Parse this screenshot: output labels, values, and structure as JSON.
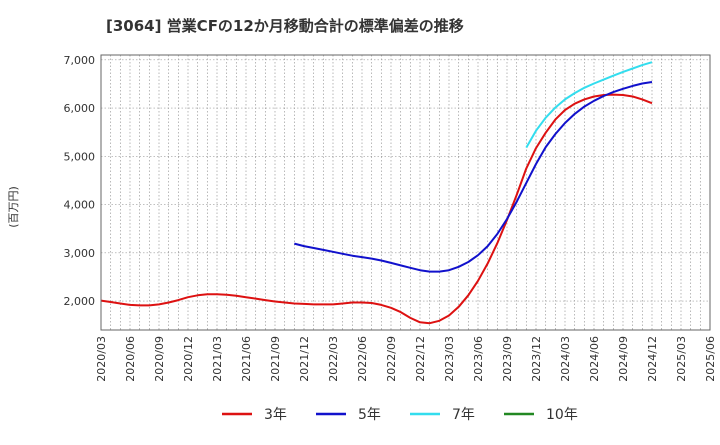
{
  "chart_data": {
    "type": "line",
    "title": "[3064]  営業CFの12か月移動合計の標準偏差の推移",
    "ylabel": "(百万円)",
    "xlabel": "",
    "ylim": [
      1400,
      7100
    ],
    "yticks": [
      2000,
      3000,
      4000,
      5000,
      6000,
      7000
    ],
    "ytick_labels": [
      "2,000",
      "3,000",
      "4,000",
      "5,000",
      "6,000",
      "7,000"
    ],
    "xtick_labels": [
      "2020/03",
      "2020/06",
      "2020/09",
      "2020/12",
      "2021/03",
      "2021/06",
      "2021/09",
      "2021/12",
      "2022/03",
      "2022/06",
      "2022/09",
      "2022/12",
      "2023/03",
      "2023/06",
      "2023/09",
      "2023/12",
      "2024/03",
      "2024/06",
      "2024/09",
      "2024/12",
      "2025/03",
      "2025/06"
    ],
    "grid": true,
    "legend_position": "bottom",
    "series": [
      {
        "name": "3年",
        "color": "#dd1111",
        "x": [
          "2020/03",
          "2020/04",
          "2020/05",
          "2020/06",
          "2020/07",
          "2020/08",
          "2020/09",
          "2020/10",
          "2020/11",
          "2020/12",
          "2021/01",
          "2021/02",
          "2021/03",
          "2021/04",
          "2021/05",
          "2021/06",
          "2021/07",
          "2021/08",
          "2021/09",
          "2021/10",
          "2021/11",
          "2021/12",
          "2022/01",
          "2022/02",
          "2022/03",
          "2022/04",
          "2022/05",
          "2022/06",
          "2022/07",
          "2022/08",
          "2022/09",
          "2022/10",
          "2022/11",
          "2022/12",
          "2023/01",
          "2023/02",
          "2023/03",
          "2023/04",
          "2023/05",
          "2023/06",
          "2023/07",
          "2023/08",
          "2023/09",
          "2023/10",
          "2023/11",
          "2023/12",
          "2024/01",
          "2024/02",
          "2024/03",
          "2024/04",
          "2024/05",
          "2024/06",
          "2024/07",
          "2024/08",
          "2024/09",
          "2024/10",
          "2024/11",
          "2024/12"
        ],
        "values": [
          2010,
          1980,
          1950,
          1920,
          1910,
          1910,
          1930,
          1970,
          2020,
          2080,
          2120,
          2140,
          2140,
          2130,
          2110,
          2080,
          2050,
          2020,
          1990,
          1970,
          1950,
          1940,
          1930,
          1930,
          1930,
          1950,
          1970,
          1970,
          1960,
          1920,
          1860,
          1770,
          1650,
          1560,
          1540,
          1590,
          1700,
          1880,
          2120,
          2420,
          2780,
          3200,
          3680,
          4200,
          4750,
          5170,
          5490,
          5760,
          5960,
          6090,
          6180,
          6240,
          6270,
          6280,
          6270,
          6240,
          6180,
          6100
        ]
      },
      {
        "name": "5年",
        "color": "#1111cc",
        "x": [
          "2021/11",
          "2021/12",
          "2022/01",
          "2022/02",
          "2022/03",
          "2022/04",
          "2022/05",
          "2022/06",
          "2022/07",
          "2022/08",
          "2022/09",
          "2022/10",
          "2022/11",
          "2022/12",
          "2023/01",
          "2023/02",
          "2023/03",
          "2023/04",
          "2023/05",
          "2023/06",
          "2023/07",
          "2023/08",
          "2023/09",
          "2023/10",
          "2023/11",
          "2023/12",
          "2024/01",
          "2024/02",
          "2024/03",
          "2024/04",
          "2024/05",
          "2024/06",
          "2024/07",
          "2024/08",
          "2024/09",
          "2024/10",
          "2024/11",
          "2024/12"
        ],
        "values": [
          3190,
          3140,
          3100,
          3060,
          3020,
          2980,
          2940,
          2910,
          2880,
          2840,
          2790,
          2740,
          2690,
          2640,
          2610,
          2610,
          2640,
          2710,
          2810,
          2950,
          3140,
          3390,
          3700,
          4060,
          4450,
          4840,
          5190,
          5460,
          5690,
          5880,
          6030,
          6150,
          6250,
          6330,
          6400,
          6460,
          6510,
          6540
        ]
      },
      {
        "name": "7年",
        "color": "#33ddee",
        "x": [
          "2023/11",
          "2023/12",
          "2024/01",
          "2024/02",
          "2024/03",
          "2024/04",
          "2024/05",
          "2024/06",
          "2024/07",
          "2024/08",
          "2024/09",
          "2024/10",
          "2024/11",
          "2024/12"
        ],
        "values": [
          5180,
          5530,
          5800,
          6010,
          6180,
          6310,
          6420,
          6510,
          6590,
          6670,
          6750,
          6820,
          6890,
          6950
        ]
      },
      {
        "name": "10年",
        "color": "#228822",
        "x": [],
        "values": []
      }
    ]
  }
}
